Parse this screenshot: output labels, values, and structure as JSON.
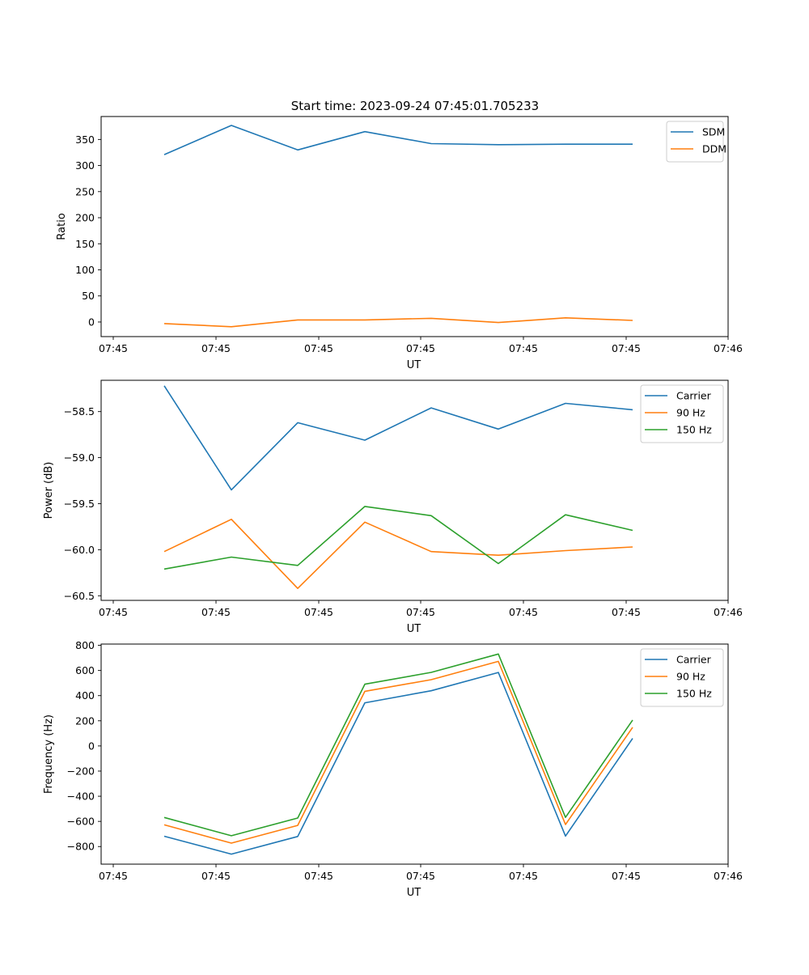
{
  "figure": {
    "title": "Start time: 2023-09-24 07:45:01.705233"
  },
  "chart_data": [
    {
      "type": "line",
      "title": "Start time: 2023-09-24 07:45:01.705233",
      "xlabel": "UT",
      "ylabel": "Ratio",
      "x_tick_labels": [
        "07:45",
        "07:45",
        "07:45",
        "07:45",
        "07:45",
        "07:45",
        "07:46"
      ],
      "y_ticks": [
        0,
        50,
        100,
        150,
        200,
        250,
        300,
        350
      ],
      "ylim": [
        -28,
        394
      ],
      "legend_position": "top-right",
      "series": [
        {
          "name": "SDM",
          "color": "#1f77b4",
          "values": [
            321,
            377,
            330,
            365,
            342,
            340,
            341,
            341
          ]
        },
        {
          "name": "DDM",
          "color": "#ff7f0e",
          "values": [
            -3,
            -9,
            4,
            4,
            7,
            -1,
            8,
            3
          ]
        }
      ]
    },
    {
      "type": "line",
      "title": "",
      "xlabel": "UT",
      "ylabel": "Power (dB)",
      "x_tick_labels": [
        "07:45",
        "07:45",
        "07:45",
        "07:45",
        "07:45",
        "07:45",
        "07:46"
      ],
      "y_ticks": [
        -60.5,
        -60.0,
        -59.5,
        -59.0,
        -58.5
      ],
      "y_tick_labels": [
        "−60.5",
        "−60.0",
        "−59.5",
        "−59.0",
        "−58.5"
      ],
      "ylim": [
        -60.55,
        -58.16
      ],
      "legend_position": "top-right",
      "series": [
        {
          "name": "Carrier",
          "color": "#1f77b4",
          "values": [
            -58.22,
            -59.35,
            -58.62,
            -58.81,
            -58.46,
            -58.69,
            -58.41,
            -58.48
          ]
        },
        {
          "name": "90 Hz",
          "color": "#ff7f0e",
          "values": [
            -60.02,
            -59.67,
            -60.42,
            -59.7,
            -60.02,
            -60.06,
            -60.01,
            -59.97
          ]
        },
        {
          "name": "150 Hz",
          "color": "#2ca02c",
          "values": [
            -60.21,
            -60.08,
            -60.17,
            -59.53,
            -59.63,
            -60.15,
            -59.62,
            -59.79
          ]
        }
      ]
    },
    {
      "type": "line",
      "title": "",
      "xlabel": "UT",
      "ylabel": "Frequency (Hz)",
      "x_tick_labels": [
        "07:45",
        "07:45",
        "07:45",
        "07:45",
        "07:45",
        "07:45",
        "07:46"
      ],
      "y_ticks": [
        -800,
        -600,
        -400,
        -200,
        0,
        200,
        400,
        600,
        800
      ],
      "y_tick_labels": [
        "−800",
        "−600",
        "−400",
        "−200",
        "0",
        "200",
        "400",
        "600",
        "800"
      ],
      "ylim": [
        -940,
        810
      ],
      "legend_position": "top-right",
      "series": [
        {
          "name": "Carrier",
          "color": "#1f77b4",
          "values": [
            -718,
            -860,
            -720,
            343,
            439,
            584,
            -717,
            60
          ]
        },
        {
          "name": "90 Hz",
          "color": "#ff7f0e",
          "values": [
            -627,
            -773,
            -632,
            434,
            527,
            672,
            -625,
            148
          ]
        },
        {
          "name": "150 Hz",
          "color": "#2ca02c",
          "values": [
            -569,
            -714,
            -573,
            491,
            585,
            731,
            -568,
            206
          ]
        }
      ]
    }
  ]
}
